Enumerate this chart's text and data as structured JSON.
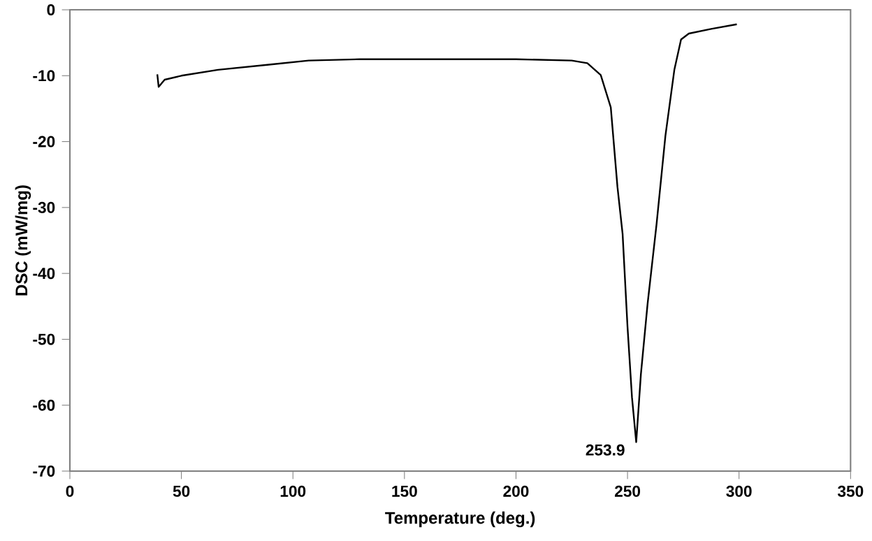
{
  "chart_data": {
    "type": "line",
    "xlabel": "Temperature (deg.)",
    "ylabel": "DSC (mW/mg)",
    "series": [
      {
        "color": "#000000",
        "x": [
          39.2,
          39.8,
          42.5,
          50,
          66.4,
          90,
          107,
          130,
          160,
          200,
          225,
          232,
          238,
          242.5,
          245.5,
          247.8,
          250,
          252,
          253.9,
          256,
          259,
          263,
          267,
          271,
          274,
          277.5,
          287.5,
          299
        ],
        "values": [
          -9.8,
          -11.7,
          -10.6,
          -10,
          -9.1,
          -8.3,
          -7.7,
          -7.5,
          -7.5,
          -7.5,
          -7.7,
          -8.1,
          -9.9,
          -14.8,
          -26.9,
          -34,
          -48.1,
          -58.8,
          -65.6,
          -55.3,
          -44.6,
          -32.6,
          -19.1,
          -9.1,
          -4.5,
          -3.6,
          -2.9,
          -2.2
        ]
      }
    ],
    "xlim": [
      0,
      350
    ],
    "xticks": [
      0,
      50,
      100,
      150,
      200,
      250,
      300,
      350
    ],
    "ylim": [
      -70,
      0
    ],
    "yticks": [
      -70,
      -60,
      -50,
      -40,
      -30,
      -20,
      -10,
      0
    ],
    "annotations": [
      {
        "text": "253.9",
        "x": 253.9,
        "y": -65.6
      }
    ],
    "marker": "none",
    "line_style": "solid"
  }
}
